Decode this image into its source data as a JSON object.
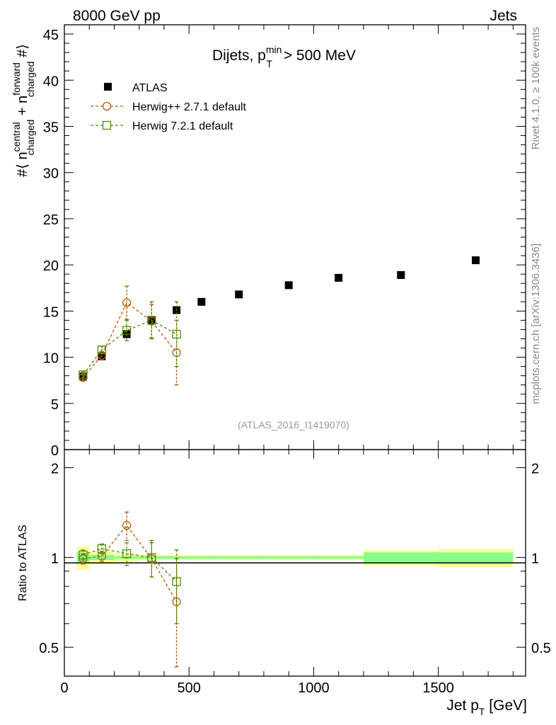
{
  "header": {
    "energy_label": "8000 GeV pp",
    "category_label": "Jets"
  },
  "side_labels": {
    "rivet": "Rivet 4.1.0, ≥ 100k events",
    "source": "mcplots.cern.ch [arXiv:1306.3436]"
  },
  "chart_data": [
    {
      "type": "scatter",
      "panel": "main",
      "title": "Dijets, p_T^min > 500 MeV",
      "title_parts": {
        "prefix": "Dijets, p",
        "sub": "T",
        "sup": "min",
        "suffix": " > 500 MeV"
      },
      "analysis_label": "(ATLAS_2016_I1419070)",
      "ylabel": "#⟨ n_charged^central + n_charged^forward #⟩",
      "ylabel_parts": {
        "prefix": "#⟨ n",
        "sup1": "central",
        "sub1": "charged",
        "mid": " + n",
        "sup2": "forward",
        "sub2": "charged",
        "suffix": " #⟩"
      },
      "xlim": [
        0,
        1850
      ],
      "ylim": [
        0,
        46
      ],
      "yticks": [
        0,
        5,
        10,
        15,
        20,
        25,
        30,
        35,
        40,
        45
      ],
      "ytick_labels": [
        "0",
        "5",
        "10",
        "15",
        "20",
        "25",
        "30",
        "35",
        "40",
        "45"
      ],
      "legend_position": "top-left",
      "series": [
        {
          "name": "ATLAS",
          "marker": "filled-square",
          "color": "#000000",
          "x": [
            75,
            150,
            250,
            350,
            450,
            550,
            700,
            900,
            1100,
            1350,
            1650
          ],
          "y": [
            7.9,
            10.1,
            12.5,
            14.0,
            15.1,
            16.0,
            16.8,
            17.8,
            18.6,
            18.9,
            20.5
          ]
        },
        {
          "name": "Herwig++ 2.7.1 default",
          "marker": "open-circle",
          "color": "#b25b0b",
          "x": [
            75,
            150,
            250,
            350,
            450
          ],
          "y": [
            7.8,
            10.2,
            15.9,
            13.9,
            10.5
          ],
          "yerr": [
            0.3,
            0.4,
            1.8,
            1.8,
            3.5
          ]
        },
        {
          "name": "Herwig 7.2.1 default",
          "marker": "open-square",
          "color": "#4f8f00",
          "x": [
            75,
            150,
            250,
            350,
            450
          ],
          "y": [
            8.1,
            10.8,
            12.9,
            14.0,
            12.5
          ],
          "yerr": [
            0.3,
            0.4,
            1.1,
            2.0,
            3.5
          ]
        }
      ]
    },
    {
      "type": "scatter",
      "panel": "ratio",
      "ylabel": "Ratio to ATLAS",
      "xlabel": "Jet p_T [GeV]",
      "xlabel_parts": {
        "prefix": "Jet p",
        "sub": "T",
        "suffix": " [GeV]"
      },
      "xlim": [
        0,
        1850
      ],
      "ylim": [
        0.4,
        2.3
      ],
      "xticks": [
        0,
        500,
        1000,
        1500
      ],
      "xtick_labels": [
        "0",
        "500",
        "1000",
        "1500"
      ],
      "yticks": [
        0.5,
        1,
        2
      ],
      "ytick_labels": [
        "0.5",
        "1",
        "2"
      ],
      "uncertainty_bands": {
        "x_edges": [
          50,
          100,
          200,
          300,
          400,
          500,
          600,
          800,
          1000,
          1200,
          1500,
          1800
        ],
        "stat_half_width": [
          0.04,
          0.02,
          0.01,
          0.01,
          0.01,
          0.01,
          0.01,
          0.01,
          0.01,
          0.04,
          0.04
        ],
        "total_half_width": [
          0.09,
          0.05,
          0.03,
          0.02,
          0.02,
          0.02,
          0.02,
          0.02,
          0.02,
          0.06,
          0.07
        ],
        "stat_color": "#88ff88",
        "total_color": "#ffff99"
      },
      "series": [
        {
          "name": "Herwig++ 2.7.1 default",
          "marker": "open-circle",
          "color": "#b25b0b",
          "x": [
            75,
            150,
            250,
            350,
            450
          ],
          "y": [
            0.99,
            1.01,
            1.28,
            0.99,
            0.71
          ],
          "yerr": [
            0.04,
            0.04,
            0.14,
            0.13,
            0.28
          ]
        },
        {
          "name": "Herwig 7.2.1 default",
          "marker": "open-square",
          "color": "#4f8f00",
          "x": [
            75,
            150,
            250,
            350,
            450
          ],
          "y": [
            1.02,
            1.07,
            1.03,
            1.0,
            0.83
          ],
          "yerr": [
            0.04,
            0.04,
            0.09,
            0.14,
            0.23
          ]
        }
      ]
    }
  ]
}
